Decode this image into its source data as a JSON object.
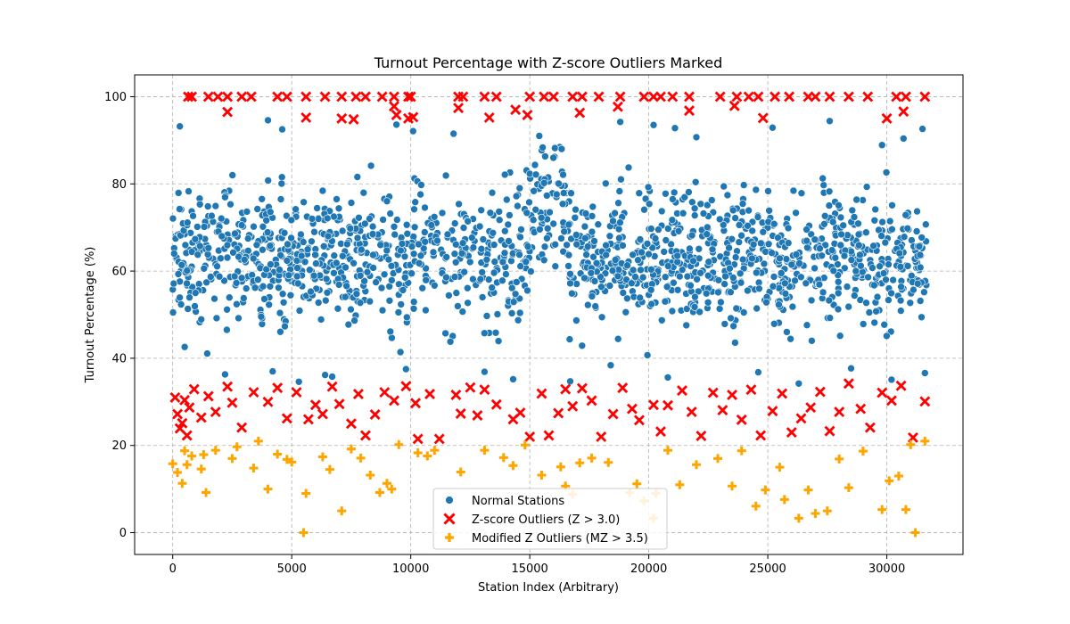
{
  "chart_data": {
    "type": "scatter",
    "title": "Turnout Percentage with Z-score Outliers Marked",
    "xlabel": "Station Index (Arbitrary)",
    "ylabel": "Turnout Percentage (%)",
    "xlim": [
      -1600,
      33200
    ],
    "ylim": [
      -5,
      105
    ],
    "x_ticks": [
      0,
      5000,
      10000,
      15000,
      20000,
      25000,
      30000
    ],
    "y_ticks": [
      0,
      20,
      40,
      60,
      80,
      100
    ],
    "grid": true,
    "legend": {
      "position": "lower-center",
      "entries": [
        "Normal Stations",
        "Z-score Outliers (Z > 3.0)",
        "Modified Z Outliers (MZ > 3.5)"
      ]
    },
    "colors": {
      "normal": "#1f77b4",
      "zscore": "#ff0000",
      "modified": "#ffa500"
    },
    "series": [
      {
        "name": "Normal Stations",
        "marker": "circle",
        "x_range": [
          0,
          31700
        ],
        "y_range": [
          34,
          95
        ],
        "typical_center": 63,
        "points": [
          [
            300,
            93.2
          ],
          [
            4000,
            94.6
          ],
          [
            4600,
            92.5
          ],
          [
            9400,
            93.6
          ],
          [
            10100,
            92.1
          ],
          [
            11800,
            91.5
          ],
          [
            15400,
            91.0
          ],
          [
            18800,
            94.2
          ],
          [
            20200,
            93.5
          ],
          [
            21100,
            92.8
          ],
          [
            22000,
            90.7
          ],
          [
            25200,
            92.9
          ],
          [
            27600,
            94.4
          ],
          [
            29800,
            88.9
          ],
          [
            30700,
            90.4
          ],
          [
            31500,
            92.6
          ],
          [
            500,
            42.6
          ],
          [
            2200,
            36.3
          ],
          [
            4200,
            37.0
          ],
          [
            5300,
            34.6
          ],
          [
            6700,
            35.8
          ],
          [
            9800,
            37.5
          ],
          [
            13100,
            36.9
          ],
          [
            14300,
            35.2
          ],
          [
            16700,
            34.7
          ],
          [
            18400,
            38.4
          ],
          [
            20800,
            35.6
          ],
          [
            24600,
            36.8
          ],
          [
            26300,
            34.2
          ],
          [
            28500,
            37.7
          ],
          [
            30200,
            35.1
          ],
          [
            31600,
            36.6
          ],
          [
            600,
            60.1
          ],
          [
            1500,
            65.3
          ],
          [
            2600,
            58.8
          ],
          [
            3400,
            70.2
          ],
          [
            4800,
            62.4
          ],
          [
            5800,
            55.3
          ],
          [
            6500,
            72.1
          ],
          [
            7600,
            61.8
          ],
          [
            8400,
            68.5
          ],
          [
            9200,
            57.9
          ],
          [
            10600,
            66.7
          ],
          [
            11500,
            63.2
          ],
          [
            12400,
            71.4
          ],
          [
            13500,
            59.6
          ],
          [
            14600,
            67.8
          ],
          [
            15600,
            80.2
          ],
          [
            16400,
            82.1
          ],
          [
            17300,
            58.4
          ],
          [
            18200,
            65.9
          ],
          [
            19100,
            61.3
          ],
          [
            20100,
            69.7
          ],
          [
            21200,
            63.5
          ],
          [
            22300,
            73.2
          ],
          [
            23400,
            60.6
          ],
          [
            24400,
            66.1
          ],
          [
            25500,
            62.9
          ],
          [
            26600,
            57.2
          ],
          [
            27700,
            64.8
          ],
          [
            28800,
            70.9
          ],
          [
            29700,
            61.1
          ],
          [
            30600,
            56.4
          ],
          [
            31400,
            63.7
          ]
        ]
      },
      {
        "name": "Z-score Outliers (Z > 3.0)",
        "marker": "x",
        "points": [
          [
            650,
            100
          ],
          [
            800,
            100
          ],
          [
            1500,
            100
          ],
          [
            1900,
            100
          ],
          [
            2300,
            100
          ],
          [
            2900,
            100
          ],
          [
            3300,
            100
          ],
          [
            4400,
            100
          ],
          [
            4800,
            100
          ],
          [
            5600,
            100
          ],
          [
            6400,
            100
          ],
          [
            7100,
            100
          ],
          [
            7700,
            100
          ],
          [
            8100,
            100
          ],
          [
            8800,
            100
          ],
          [
            9300,
            100
          ],
          [
            9900,
            100
          ],
          [
            10000,
            100
          ],
          [
            12000,
            100
          ],
          [
            12200,
            100
          ],
          [
            13100,
            100
          ],
          [
            13600,
            100
          ],
          [
            15000,
            100
          ],
          [
            15600,
            100
          ],
          [
            16000,
            100
          ],
          [
            16800,
            100
          ],
          [
            17200,
            100
          ],
          [
            17900,
            100
          ],
          [
            18800,
            100
          ],
          [
            19800,
            100
          ],
          [
            20200,
            100
          ],
          [
            20500,
            100
          ],
          [
            21000,
            100
          ],
          [
            21700,
            100
          ],
          [
            23000,
            100
          ],
          [
            23700,
            100
          ],
          [
            24200,
            100
          ],
          [
            24600,
            100
          ],
          [
            25300,
            100
          ],
          [
            25900,
            100
          ],
          [
            26700,
            100
          ],
          [
            27000,
            100
          ],
          [
            27600,
            100
          ],
          [
            28400,
            100
          ],
          [
            29200,
            100
          ],
          [
            30400,
            100
          ],
          [
            30800,
            100
          ],
          [
            31600,
            100
          ],
          [
            2300,
            96.5
          ],
          [
            5600,
            95.2
          ],
          [
            7100,
            95.0
          ],
          [
            7600,
            94.8
          ],
          [
            9300,
            97.8
          ],
          [
            9400,
            95.8
          ],
          [
            9900,
            95.0
          ],
          [
            10100,
            95.3
          ],
          [
            12000,
            97.4
          ],
          [
            13300,
            95.2
          ],
          [
            14400,
            97.0
          ],
          [
            14900,
            95.8
          ],
          [
            17100,
            96.3
          ],
          [
            18700,
            97.7
          ],
          [
            21700,
            96.8
          ],
          [
            23600,
            97.9
          ],
          [
            24800,
            95.1
          ],
          [
            30000,
            95.0
          ],
          [
            30700,
            96.6
          ],
          [
            100,
            31.0
          ],
          [
            200,
            27.2
          ],
          [
            300,
            23.9
          ],
          [
            400,
            25.1
          ],
          [
            500,
            30.4
          ],
          [
            600,
            22.3
          ],
          [
            700,
            28.7
          ],
          [
            900,
            32.9
          ],
          [
            1200,
            26.4
          ],
          [
            1500,
            31.3
          ],
          [
            1800,
            27.7
          ],
          [
            2300,
            33.5
          ],
          [
            2500,
            29.8
          ],
          [
            2900,
            24.1
          ],
          [
            3400,
            32.2
          ],
          [
            4000,
            30.0
          ],
          [
            4400,
            33.2
          ],
          [
            4800,
            26.2
          ],
          [
            5200,
            32.2
          ],
          [
            5700,
            26.0
          ],
          [
            6000,
            29.3
          ],
          [
            6300,
            27.2
          ],
          [
            6700,
            33.5
          ],
          [
            7000,
            29.5
          ],
          [
            7500,
            25.0
          ],
          [
            7800,
            31.8
          ],
          [
            8100,
            22.3
          ],
          [
            8500,
            27.1
          ],
          [
            8900,
            32.2
          ],
          [
            9300,
            30.3
          ],
          [
            9800,
            33.6
          ],
          [
            10200,
            29.7
          ],
          [
            10300,
            21.5
          ],
          [
            10800,
            31.8
          ],
          [
            11200,
            21.5
          ],
          [
            11900,
            31.6
          ],
          [
            12100,
            27.3
          ],
          [
            12500,
            33.3
          ],
          [
            12800,
            26.9
          ],
          [
            13100,
            32.8
          ],
          [
            13600,
            29.4
          ],
          [
            14300,
            26.0
          ],
          [
            14600,
            27.5
          ],
          [
            15000,
            22.0
          ],
          [
            15500,
            31.9
          ],
          [
            15800,
            22.3
          ],
          [
            16200,
            27.4
          ],
          [
            16500,
            32.9
          ],
          [
            16800,
            29.0
          ],
          [
            17200,
            33.1
          ],
          [
            17600,
            30.3
          ],
          [
            18000,
            22.0
          ],
          [
            18500,
            27.2
          ],
          [
            18900,
            33.2
          ],
          [
            19300,
            28.4
          ],
          [
            19600,
            25.8
          ],
          [
            20200,
            29.3
          ],
          [
            20500,
            23.2
          ],
          [
            20800,
            29.2
          ],
          [
            21400,
            32.6
          ],
          [
            21800,
            27.7
          ],
          [
            22200,
            22.2
          ],
          [
            22700,
            32.1
          ],
          [
            23100,
            28.1
          ],
          [
            23500,
            31.6
          ],
          [
            23900,
            25.9
          ],
          [
            24300,
            32.8
          ],
          [
            24700,
            22.3
          ],
          [
            25200,
            27.9
          ],
          [
            25600,
            31.9
          ],
          [
            26000,
            23.0
          ],
          [
            26400,
            26.2
          ],
          [
            26800,
            28.7
          ],
          [
            27200,
            32.3
          ],
          [
            27600,
            23.3
          ],
          [
            28000,
            27.7
          ],
          [
            28400,
            34.2
          ],
          [
            28900,
            28.4
          ],
          [
            29300,
            24.1
          ],
          [
            29800,
            32.1
          ],
          [
            30200,
            30.3
          ],
          [
            30600,
            33.7
          ],
          [
            31100,
            21.8
          ],
          [
            31600,
            30.1
          ]
        ]
      },
      {
        "name": "Modified Z Outliers (MZ > 3.5)",
        "marker": "plus",
        "points": [
          [
            0,
            15.8
          ],
          [
            200,
            13.8
          ],
          [
            400,
            11.3
          ],
          [
            500,
            18.8
          ],
          [
            600,
            15.6
          ],
          [
            800,
            17.6
          ],
          [
            1200,
            14.6
          ],
          [
            1300,
            17.9
          ],
          [
            1400,
            9.2
          ],
          [
            1800,
            18.9
          ],
          [
            2500,
            17.0
          ],
          [
            2700,
            19.7
          ],
          [
            3400,
            14.8
          ],
          [
            3600,
            21.0
          ],
          [
            4000,
            10.0
          ],
          [
            4400,
            18.0
          ],
          [
            4800,
            16.8
          ],
          [
            5000,
            16.2
          ],
          [
            5500,
            0.0
          ],
          [
            5600,
            9.0
          ],
          [
            6300,
            17.4
          ],
          [
            6600,
            14.5
          ],
          [
            7100,
            5.0
          ],
          [
            7500,
            19.2
          ],
          [
            7900,
            17.1
          ],
          [
            8300,
            13.2
          ],
          [
            8700,
            9.2
          ],
          [
            9000,
            11.3
          ],
          [
            9200,
            10.0
          ],
          [
            9500,
            20.2
          ],
          [
            10300,
            18.3
          ],
          [
            10700,
            17.6
          ],
          [
            11000,
            18.9
          ],
          [
            12100,
            13.9
          ],
          [
            13100,
            18.9
          ],
          [
            13900,
            17.2
          ],
          [
            14300,
            15.4
          ],
          [
            14800,
            20.1
          ],
          [
            15500,
            13.2
          ],
          [
            16300,
            15.1
          ],
          [
            16500,
            10.7
          ],
          [
            16800,
            8.8
          ],
          [
            17100,
            16.0
          ],
          [
            17600,
            17.1
          ],
          [
            18300,
            16.1
          ],
          [
            19200,
            9.2
          ],
          [
            19500,
            11.2
          ],
          [
            19800,
            7.3
          ],
          [
            20200,
            3.3
          ],
          [
            20300,
            9.0
          ],
          [
            20800,
            18.9
          ],
          [
            21300,
            11.0
          ],
          [
            22000,
            15.6
          ],
          [
            22900,
            17.0
          ],
          [
            23500,
            10.7
          ],
          [
            23900,
            18.8
          ],
          [
            24500,
            6.1
          ],
          [
            24900,
            9.8
          ],
          [
            25500,
            15.0
          ],
          [
            25700,
            7.6
          ],
          [
            26300,
            3.3
          ],
          [
            26700,
            9.8
          ],
          [
            27000,
            4.4
          ],
          [
            27500,
            5.0
          ],
          [
            28000,
            16.9
          ],
          [
            28400,
            10.3
          ],
          [
            29000,
            18.7
          ],
          [
            29800,
            5.3
          ],
          [
            30100,
            11.9
          ],
          [
            30500,
            13.0
          ],
          [
            30800,
            5.3
          ],
          [
            31000,
            20.2
          ],
          [
            31200,
            0.0
          ],
          [
            31600,
            21.0
          ]
        ]
      }
    ]
  }
}
